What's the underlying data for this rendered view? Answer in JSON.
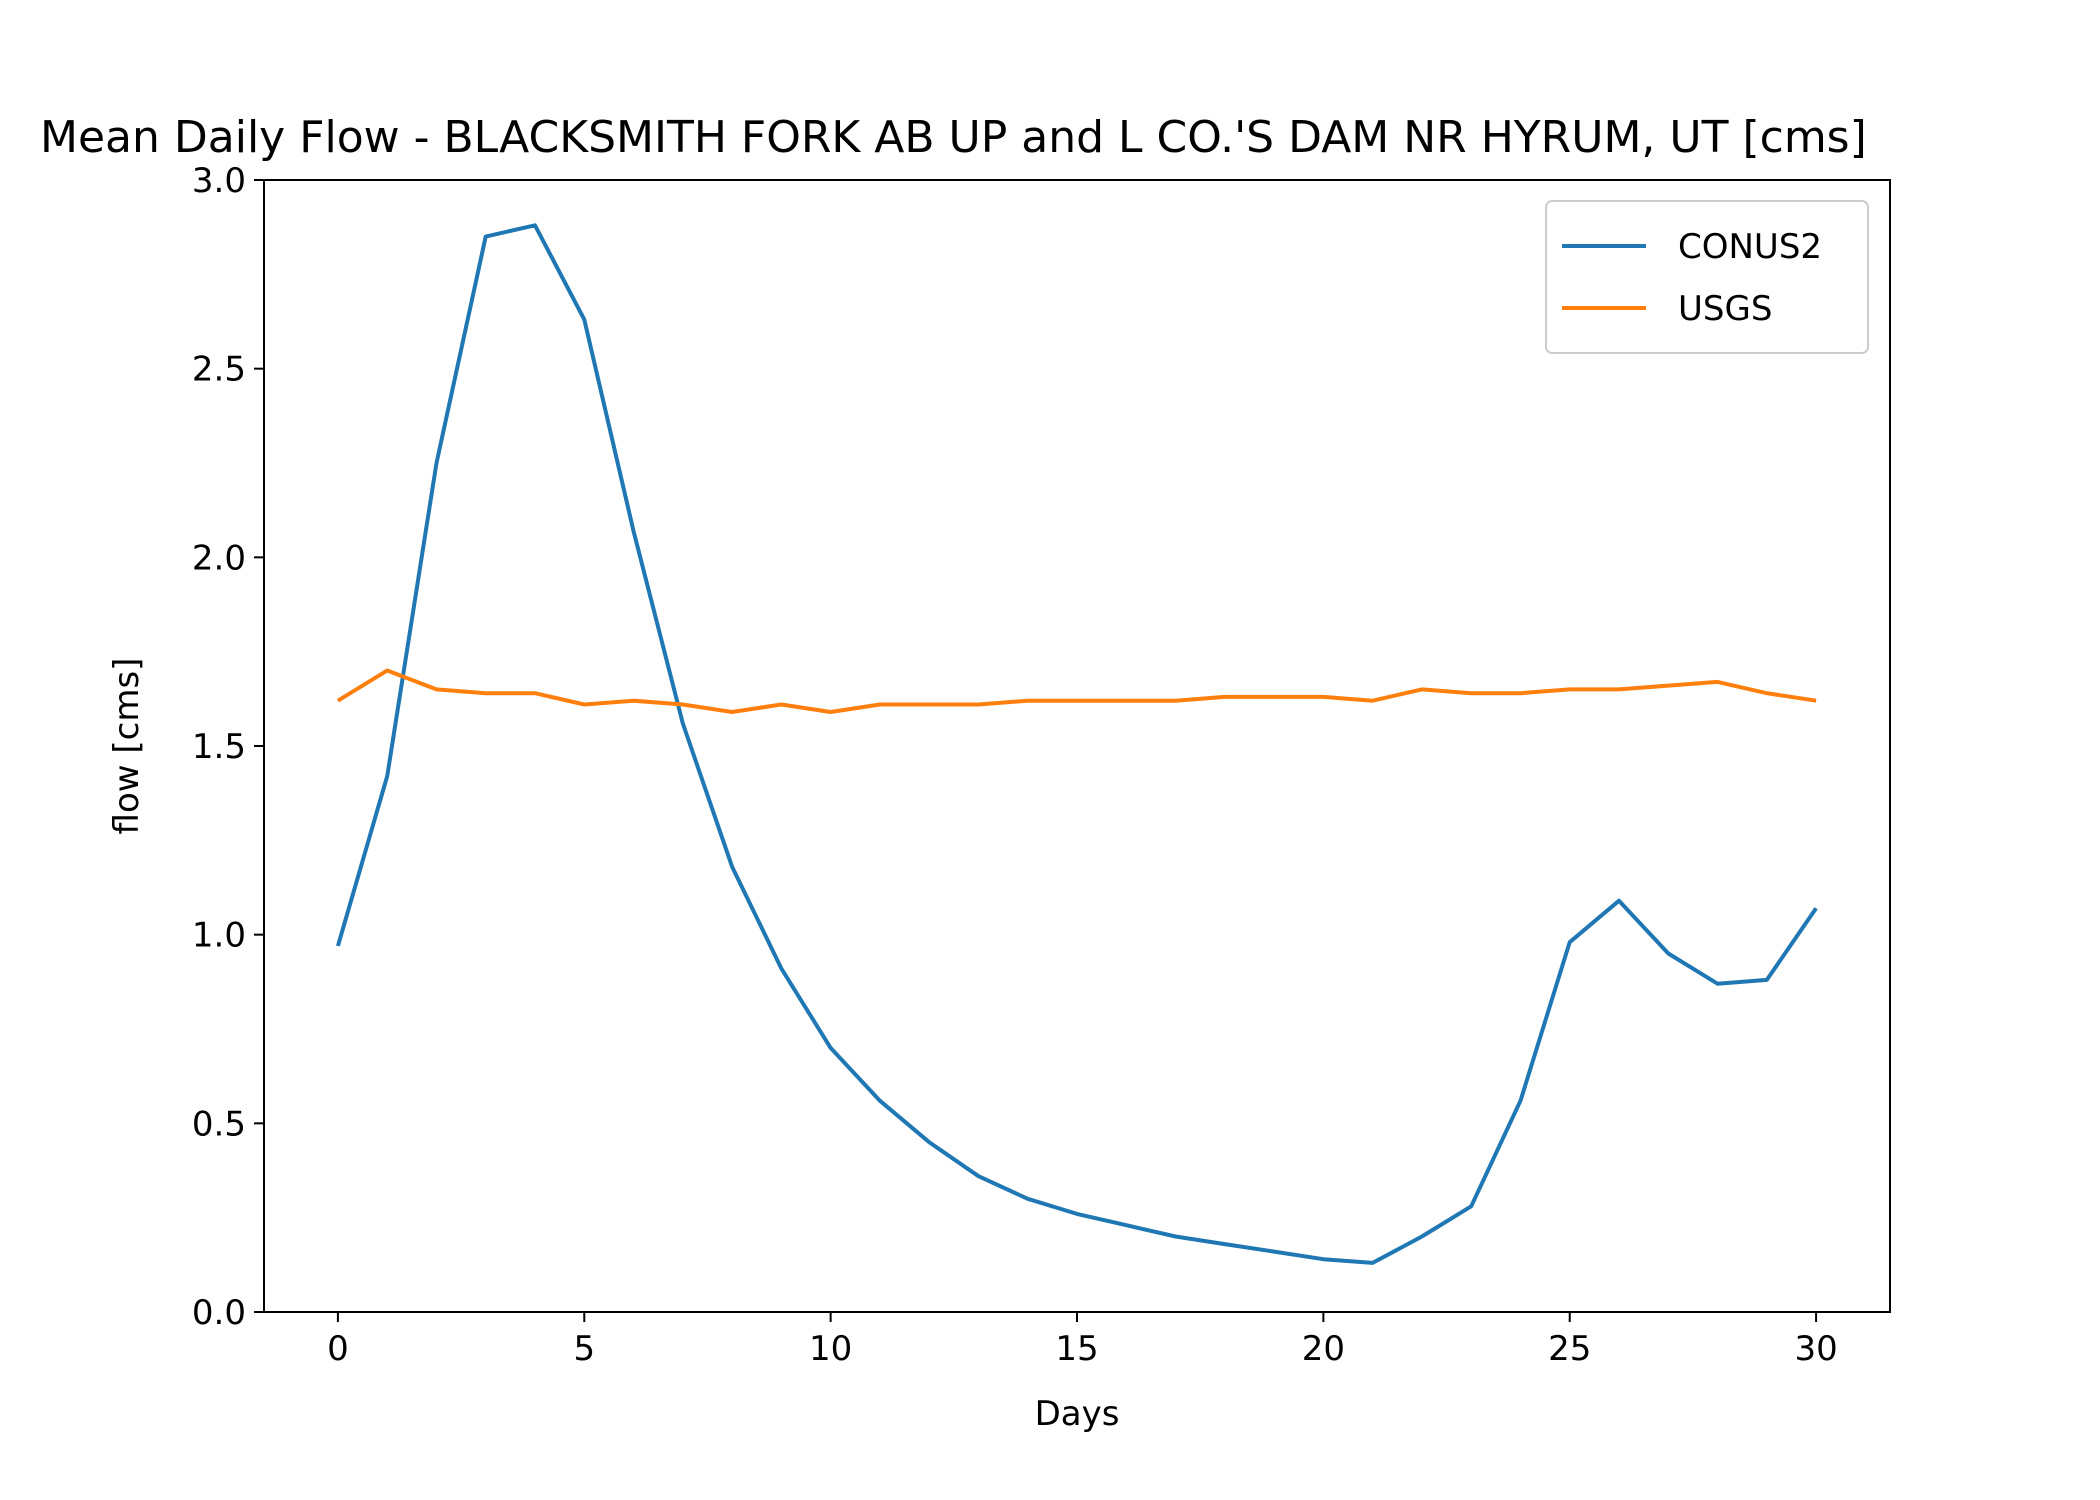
{
  "chart_data": {
    "type": "line",
    "title": "Mean Daily Flow - BLACKSMITH FORK AB UP and L CO.'S DAM NR HYRUM, UT [cms]",
    "xlabel": "Days",
    "ylabel": "flow [cms]",
    "xlim": [
      -1.5,
      31.5
    ],
    "ylim": [
      0,
      3.0
    ],
    "xticks": [
      0,
      5,
      10,
      15,
      20,
      25,
      30
    ],
    "xtick_labels": [
      "0",
      "5",
      "10",
      "15",
      "20",
      "25",
      "30"
    ],
    "yticks": [
      0,
      0.5,
      1.0,
      1.5,
      2.0,
      2.5,
      3.0
    ],
    "ytick_labels": [
      "0.0",
      "0.5",
      "1.0",
      "1.5",
      "2.0",
      "2.5",
      "3.0"
    ],
    "grid": false,
    "legend": "top-right",
    "x": [
      0,
      1,
      2,
      3,
      4,
      5,
      6,
      7,
      8,
      9,
      10,
      11,
      12,
      13,
      14,
      15,
      16,
      17,
      18,
      19,
      20,
      21,
      22,
      23,
      24,
      25,
      26,
      27,
      28,
      29,
      30
    ],
    "series": [
      {
        "name": "CONUS2",
        "color": "#1f77b4",
        "values": [
          0.97,
          1.42,
          2.25,
          2.85,
          2.88,
          2.63,
          2.07,
          1.56,
          1.18,
          0.91,
          0.7,
          0.56,
          0.45,
          0.36,
          0.3,
          0.26,
          0.23,
          0.2,
          0.18,
          0.16,
          0.14,
          0.13,
          0.2,
          0.28,
          0.56,
          0.98,
          1.09,
          0.95,
          0.87,
          0.88,
          1.07
        ]
      },
      {
        "name": "USGS",
        "color": "#ff7f0e",
        "values": [
          1.62,
          1.7,
          1.65,
          1.64,
          1.64,
          1.61,
          1.62,
          1.61,
          1.59,
          1.61,
          1.59,
          1.61,
          1.61,
          1.61,
          1.62,
          1.62,
          1.62,
          1.62,
          1.63,
          1.63,
          1.63,
          1.62,
          1.65,
          1.64,
          1.64,
          1.65,
          1.65,
          1.66,
          1.67,
          1.64,
          1.62
        ]
      }
    ]
  }
}
